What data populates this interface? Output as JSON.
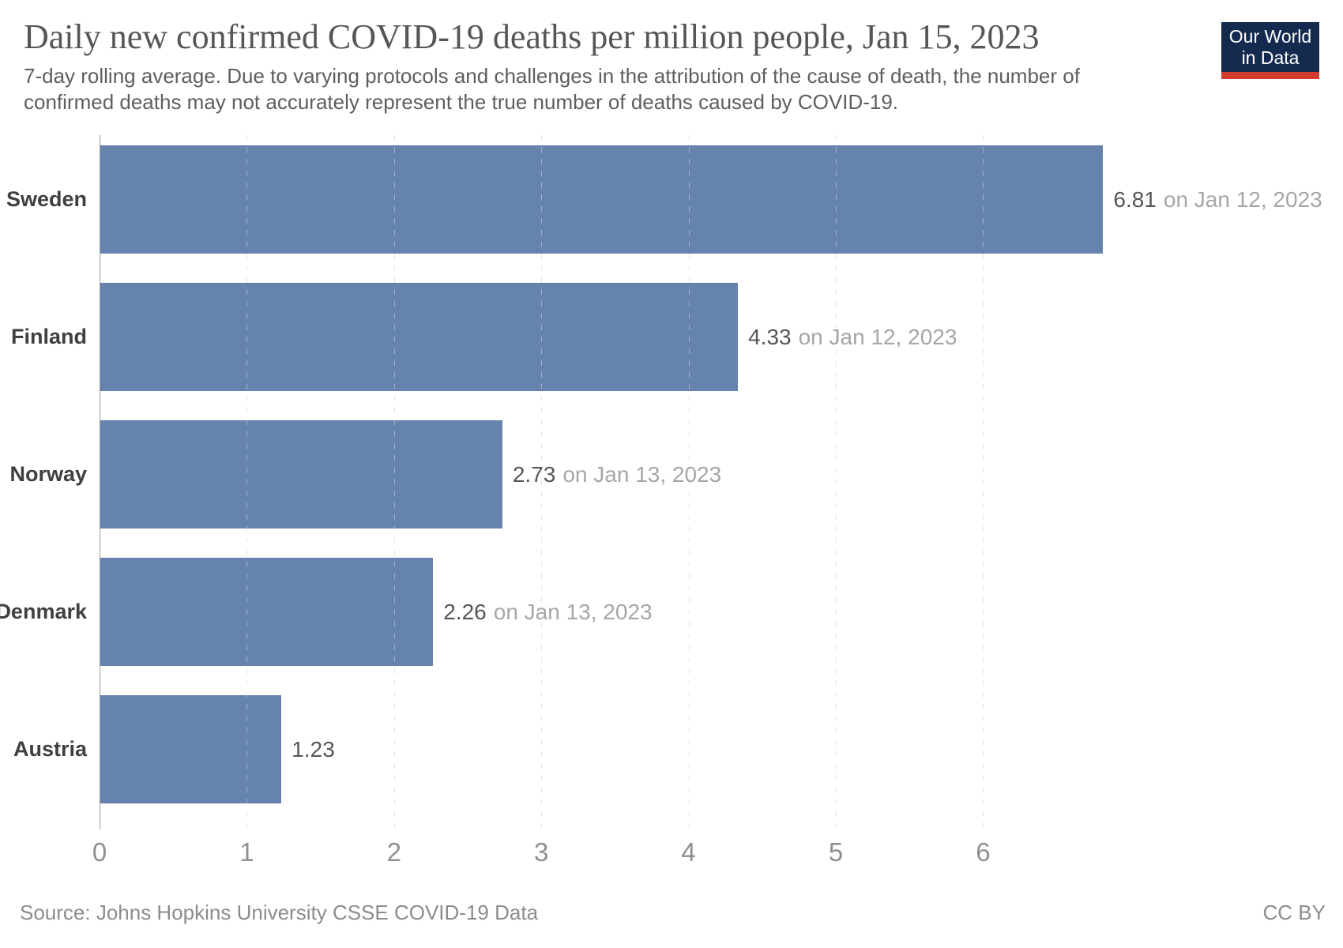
{
  "header": {
    "title": "Daily new confirmed COVID-19 deaths per million people, Jan 15, 2023",
    "subtitle_lines": [
      "7-day rolling average. Due to varying protocols and challenges in the attribution of the cause of death, the number of",
      "confirmed deaths may not accurately represent the true number of deaths caused by COVID-19."
    ],
    "logo": {
      "line1": "Our World",
      "line2": "in Data",
      "background_color": "#142a4e",
      "accent_color": "#d23b2e"
    }
  },
  "chart_data": {
    "type": "bar",
    "orientation": "horizontal",
    "title": "Daily new confirmed COVID-19 deaths per million people, Jan 15, 2023",
    "subtitle": "7-day rolling average. Due to varying protocols and challenges in the attribution of the cause of death, the number of confirmed deaths may not accurately represent the true number of deaths caused by COVID-19.",
    "categories": [
      "Sweden",
      "Finland",
      "Norway",
      "Denmark",
      "Austria"
    ],
    "values": [
      6.81,
      4.33,
      2.73,
      2.26,
      1.23
    ],
    "bars": [
      {
        "label": "Sweden",
        "value": 6.81,
        "value_text": "6.81",
        "date_text": "on Jan 12, 2023"
      },
      {
        "label": "Finland",
        "value": 4.33,
        "value_text": "4.33",
        "date_text": "on Jan 12, 2023"
      },
      {
        "label": "Norway",
        "value": 2.73,
        "value_text": "2.73",
        "date_text": "on Jan 13, 2023"
      },
      {
        "label": "Denmark",
        "value": 2.26,
        "value_text": "2.26",
        "date_text": "on Jan 13, 2023"
      },
      {
        "label": "Austria",
        "value": 1.23,
        "value_text": "1.23",
        "date_text": ""
      }
    ],
    "x_ticks": [
      "0",
      "1",
      "2",
      "3",
      "4",
      "5",
      "6"
    ],
    "xlim": [
      0,
      6.85
    ],
    "xlabel": "",
    "ylabel": "",
    "grid": true,
    "legend": false,
    "bar_color": "#6583ad"
  },
  "footer": {
    "source": "Source: Johns Hopkins University CSSE COVID-19 Data",
    "license": "CC BY"
  }
}
